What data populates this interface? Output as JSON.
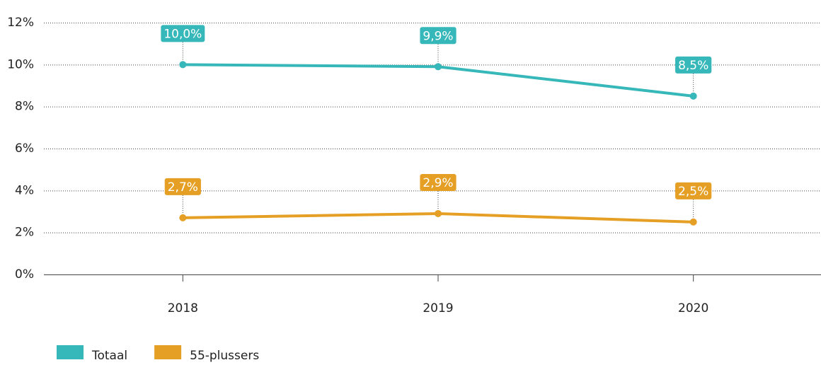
{
  "chart_data": {
    "type": "line",
    "categories": [
      "2018",
      "2019",
      "2020"
    ],
    "series": [
      {
        "name": "Totaal",
        "color": "#36b7b9",
        "values": [
          10.0,
          9.9,
          8.5
        ],
        "value_labels": [
          "10,0%",
          "9,9%",
          "8,5%"
        ]
      },
      {
        "name": "55-plussers",
        "color": "#e59f24",
        "values": [
          2.7,
          2.9,
          2.5
        ],
        "value_labels": [
          "2,7%",
          "2,9%",
          "2,5%"
        ]
      }
    ],
    "ylim": [
      0,
      12
    ],
    "yticks": [
      {
        "value": 0,
        "label": "0%"
      },
      {
        "value": 2,
        "label": "2%"
      },
      {
        "value": 4,
        "label": "4%"
      },
      {
        "value": 6,
        "label": "6%"
      },
      {
        "value": 8,
        "label": "8%"
      },
      {
        "value": 10,
        "label": "10%"
      },
      {
        "value": 12,
        "label": "12%"
      }
    ],
    "grid": true
  }
}
